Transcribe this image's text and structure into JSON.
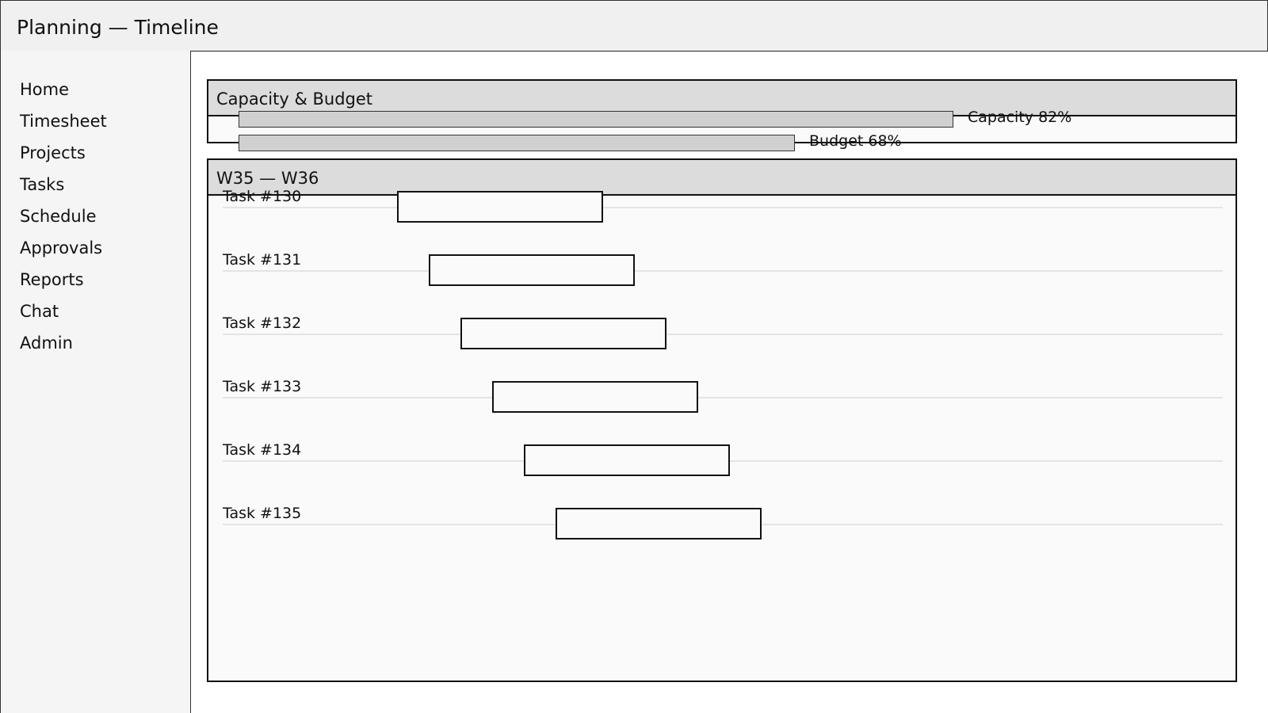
{
  "window": {
    "title": "Planning — Timeline"
  },
  "sidebar": {
    "items": [
      {
        "label": "Home"
      },
      {
        "label": "Timesheet"
      },
      {
        "label": "Projects"
      },
      {
        "label": "Tasks"
      },
      {
        "label": "Schedule"
      },
      {
        "label": "Approvals"
      },
      {
        "label": "Reports"
      },
      {
        "label": "Chat"
      },
      {
        "label": "Admin"
      }
    ]
  },
  "capacity_panel": {
    "title": "Capacity & Budget",
    "meters": [
      {
        "label": "Capacity 82%",
        "value": 0.82
      },
      {
        "label": "Budget 68%",
        "value": 0.68
      }
    ]
  },
  "timeline_panel": {
    "title": "W35 — W36",
    "tasks": [
      {
        "label": "Task #130"
      },
      {
        "label": "Task #131"
      },
      {
        "label": "Task #132"
      },
      {
        "label": "Task #133"
      },
      {
        "label": "Task #134"
      },
      {
        "label": "Task #135"
      }
    ]
  },
  "colors": {
    "titlebar_bg": "#f0f0f0",
    "sidebar_bg": "#f5f5f5",
    "panel_header_bg": "#dcdcdc",
    "panel_bg": "#fafafa",
    "meter_fill": "#d0d0d0",
    "border": "#111111"
  }
}
